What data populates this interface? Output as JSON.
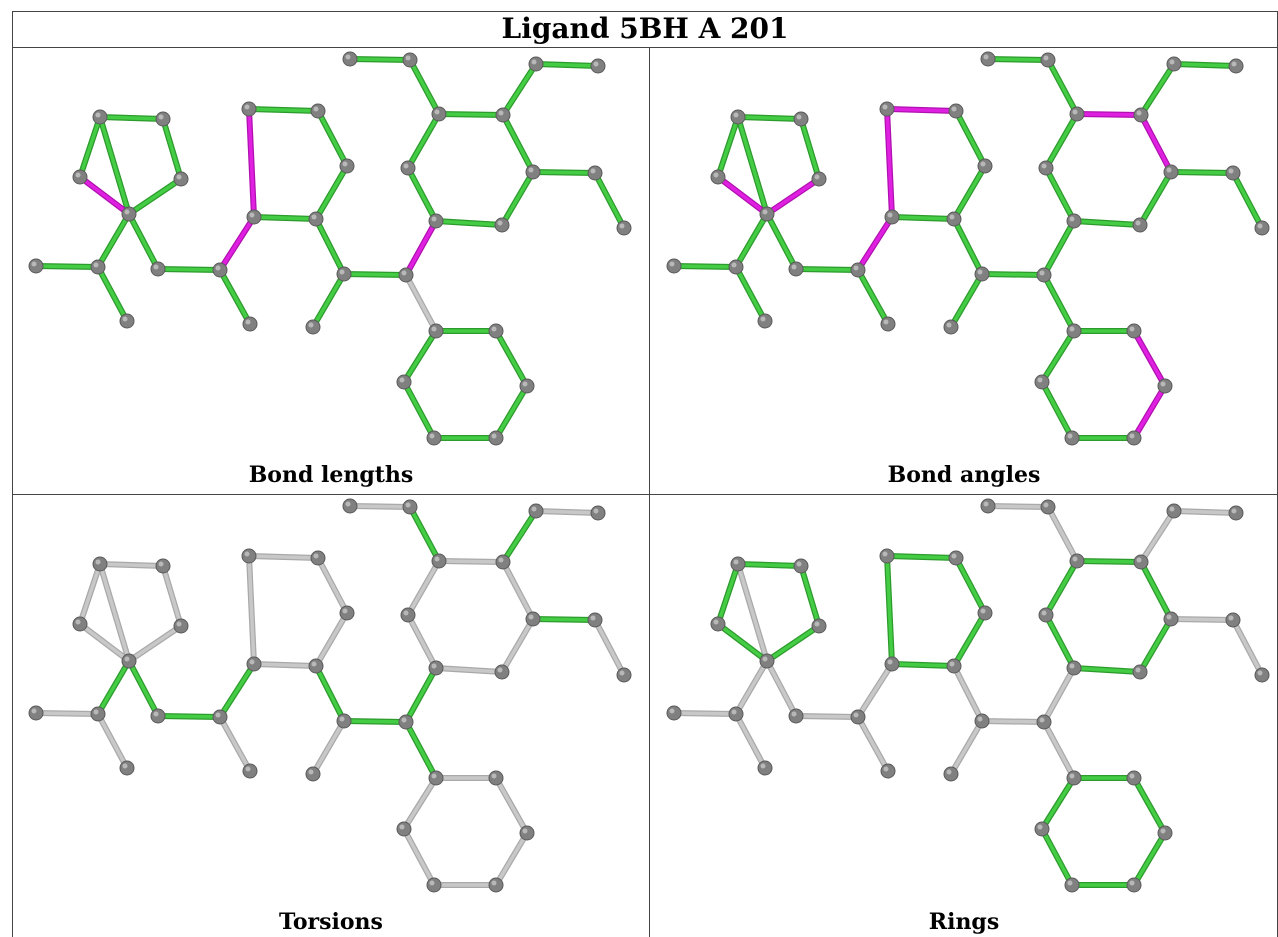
{
  "title": "Ligand 5BH A 201",
  "colors": {
    "normal": "#44cc44",
    "outlier": "#e020e0",
    "ignored": "#c8c8c8",
    "atom": "#808080"
  },
  "panels": [
    {
      "id": "bond-lengths",
      "caption": "Bond lengths",
      "outlier_bonds": [
        [
          4,
          5
        ],
        [
          7,
          8
        ],
        [
          8,
          9
        ],
        [
          10,
          11
        ],
        [
          20,
          21
        ]
      ],
      "ignored_bonds": [
        [
          21,
          22
        ]
      ]
    },
    {
      "id": "bond-angles",
      "caption": "Bond angles",
      "outlier_bonds": [
        [
          4,
          5
        ],
        [
          3,
          4
        ],
        [
          7,
          8
        ],
        [
          7,
          12
        ],
        [
          8,
          9
        ],
        [
          10,
          11
        ],
        [
          16,
          17
        ],
        [
          17,
          18
        ],
        [
          25,
          26
        ],
        [
          26,
          27
        ]
      ],
      "ignored_bonds": []
    },
    {
      "id": "torsions",
      "caption": "Torsions",
      "outlier_bonds": [],
      "normal_bonds": [
        [
          5,
          6
        ],
        [
          5,
          14
        ],
        [
          14,
          15
        ],
        [
          15,
          8
        ],
        [
          11,
          19
        ],
        [
          19,
          20
        ],
        [
          20,
          21
        ],
        [
          21,
          22
        ],
        [
          30,
          17
        ],
        [
          16,
          31
        ],
        [
          18,
          34
        ],
        [
          29,
          30
        ]
      ]
    },
    {
      "id": "rings",
      "caption": "Rings",
      "outlier_bonds": [],
      "normal_bonds": [
        [
          1,
          2
        ],
        [
          2,
          3
        ],
        [
          3,
          4
        ],
        [
          4,
          5
        ],
        [
          5,
          1
        ],
        [
          7,
          8
        ],
        [
          8,
          9
        ],
        [
          9,
          10
        ],
        [
          10,
          11
        ],
        [
          11,
          12
        ],
        [
          12,
          7
        ],
        [
          16,
          17
        ],
        [
          17,
          18
        ],
        [
          18,
          19
        ],
        [
          19,
          20
        ],
        [
          20,
          21
        ],
        [
          21,
          16
        ],
        [
          22,
          23
        ],
        [
          23,
          24
        ],
        [
          24,
          25
        ],
        [
          25,
          26
        ],
        [
          26,
          27
        ],
        [
          27,
          22
        ]
      ]
    }
  ]
}
